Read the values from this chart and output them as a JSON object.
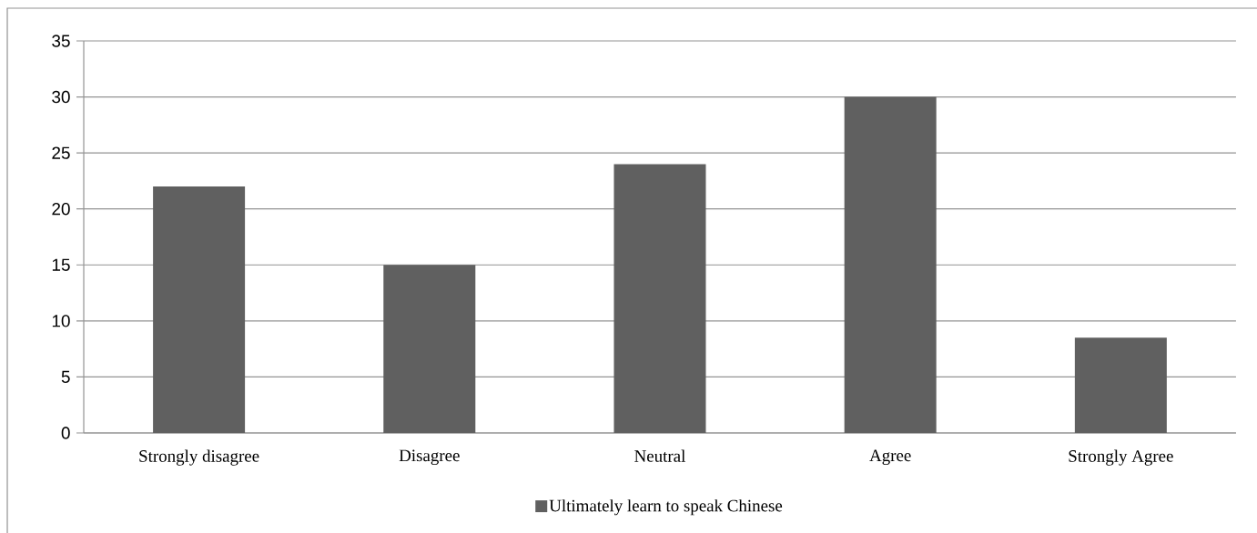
{
  "chart_data": {
    "type": "bar",
    "categories": [
      "Strongly disagree",
      "Disagree",
      "Neutral",
      "Agree",
      "Strongly Agree"
    ],
    "series": [
      {
        "name": "Ultimately learn to speak Chinese",
        "color": "#606060",
        "values": [
          22,
          15,
          24,
          30,
          8.5
        ]
      }
    ],
    "ylim": [
      0,
      35
    ],
    "yticks": [
      0,
      5,
      10,
      15,
      20,
      25,
      30,
      35
    ],
    "grid": "y",
    "legend": "bottom"
  }
}
